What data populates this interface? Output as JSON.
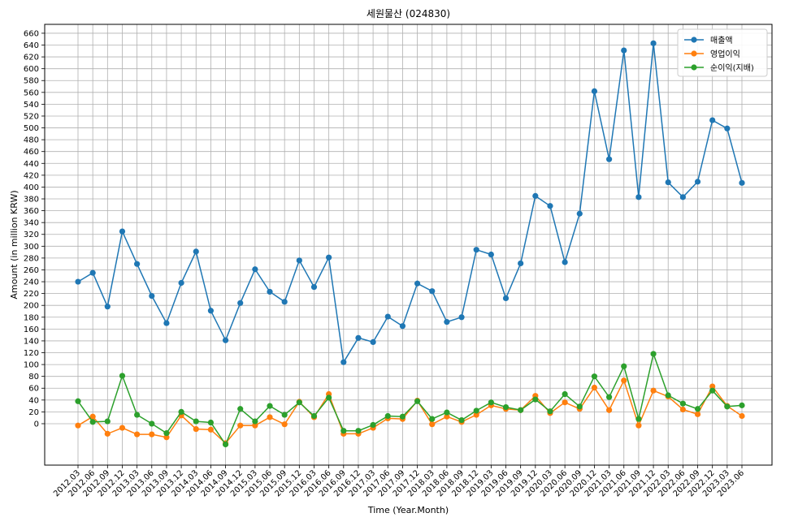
{
  "chart_data": {
    "type": "line",
    "title": "세원물산 (024830)",
    "xlabel": "Time (Year.Month)",
    "ylabel": "Amount (in million KRW)",
    "ylim": [
      -70,
      675
    ],
    "yticks": [
      0,
      20,
      40,
      60,
      80,
      100,
      120,
      140,
      160,
      180,
      200,
      220,
      240,
      260,
      280,
      300,
      320,
      340,
      360,
      380,
      400,
      420,
      440,
      460,
      480,
      500,
      520,
      540,
      560,
      580,
      600,
      620,
      640,
      660
    ],
    "grid": true,
    "legend_position": "top-right",
    "categories": [
      "2012.03",
      "2012.06",
      "2012.09",
      "2012.12",
      "2013.03",
      "2013.06",
      "2013.09",
      "2013.12",
      "2014.03",
      "2014.06",
      "2014.09",
      "2014.12",
      "2015.03",
      "2015.06",
      "2015.09",
      "2015.12",
      "2016.03",
      "2016.06",
      "2016.09",
      "2016.12",
      "2017.03",
      "2017.06",
      "2017.09",
      "2017.12",
      "2018.03",
      "2018.06",
      "2018.09",
      "2018.12",
      "2019.03",
      "2019.06",
      "2019.09",
      "2019.12",
      "2020.03",
      "2020.06",
      "2020.09",
      "2020.12",
      "2021.03",
      "2021.06",
      "2021.09",
      "2021.12",
      "2022.03",
      "2022.06",
      "2022.09",
      "2022.12",
      "2023.03",
      "2023.06"
    ],
    "series": [
      {
        "name": "매출액",
        "color": "#1f77b4",
        "values": [
          240,
          255,
          198,
          325,
          270,
          216,
          170,
          238,
          291,
          191,
          141,
          204,
          261,
          223,
          206,
          276,
          231,
          281,
          104,
          145,
          138,
          181,
          165,
          237,
          224,
          172,
          180,
          294,
          286,
          212,
          271,
          385,
          368,
          273,
          355,
          562,
          447,
          631,
          383,
          643,
          408,
          383,
          409,
          513,
          499,
          407
        ]
      },
      {
        "name": "영업이익",
        "color": "#ff7f0e",
        "values": [
          -3,
          12,
          -17,
          -7,
          -18,
          -18,
          -23,
          14,
          -9,
          -10,
          -33,
          -3,
          -3,
          11,
          -1,
          37,
          11,
          50,
          -17,
          -17,
          -7,
          9,
          8,
          39,
          -1,
          12,
          3,
          15,
          31,
          25,
          23,
          47,
          18,
          36,
          25,
          61,
          23,
          73,
          -3,
          56,
          46,
          24,
          16,
          63,
          30,
          13
        ]
      },
      {
        "name": "순이익(지배)",
        "color": "#2ca02c",
        "values": [
          38,
          3,
          4,
          81,
          15,
          0,
          -16,
          20,
          4,
          2,
          -35,
          25,
          4,
          30,
          15,
          36,
          13,
          44,
          -12,
          -12,
          -2,
          13,
          12,
          38,
          8,
          19,
          6,
          22,
          36,
          28,
          23,
          41,
          21,
          50,
          29,
          80,
          45,
          97,
          8,
          118,
          48,
          34,
          25,
          56,
          29,
          31
        ]
      }
    ]
  }
}
